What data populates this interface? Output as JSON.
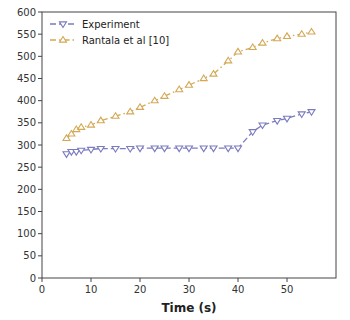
{
  "chart_data": {
    "type": "line",
    "xlabel": "Time (s)",
    "x": [
      5,
      6,
      7,
      8,
      10,
      12,
      15,
      18,
      20,
      23,
      25,
      28,
      30,
      33,
      35,
      38,
      40,
      43,
      45,
      48,
      50,
      53,
      55
    ],
    "series": [
      {
        "name": "Experiment",
        "color": "#7b7bbf",
        "marker": "triangle-down",
        "line_style": "dashed",
        "values": [
          280,
          285,
          285,
          288,
          290,
          292,
          292,
          292,
          293,
          293,
          293,
          293,
          293,
          293,
          293,
          293,
          293,
          330,
          345,
          355,
          360,
          370,
          375
        ]
      },
      {
        "name": "Rantala et al [10]",
        "color": "#d4a855",
        "marker": "triangle-up",
        "line_style": "dashdot",
        "values": [
          315,
          325,
          335,
          340,
          345,
          355,
          365,
          375,
          385,
          400,
          410,
          425,
          435,
          450,
          460,
          490,
          510,
          520,
          530,
          540,
          545,
          550,
          555
        ]
      }
    ],
    "xlim": [
      0,
      60
    ],
    "ylim": [
      0,
      600
    ],
    "xticks": [
      0,
      10,
      20,
      30,
      40,
      50
    ],
    "yticks": [
      0,
      50,
      100,
      150,
      200,
      250,
      300,
      350,
      400,
      450,
      500,
      550,
      600
    ],
    "grid": false,
    "legend": "upper left"
  }
}
